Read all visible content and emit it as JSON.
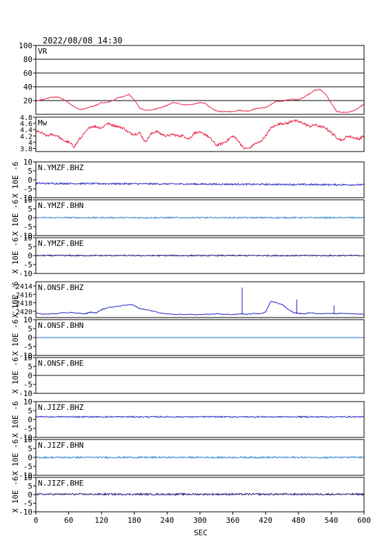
{
  "header": {
    "datetime": "2022/08/08 14:30"
  },
  "xaxis": {
    "label": "SEC",
    "min": 0,
    "max": 600,
    "ticks": [
      0,
      60,
      120,
      180,
      240,
      300,
      360,
      420,
      480,
      540,
      600
    ]
  },
  "chart_data": [
    {
      "type": "line",
      "label": "VR",
      "ylim": [
        0,
        100
      ],
      "yticks": [
        20,
        40,
        60,
        80,
        100
      ],
      "grid": true,
      "color": "#e8254a",
      "x": [
        0,
        10,
        20,
        30,
        40,
        50,
        60,
        70,
        80,
        90,
        100,
        110,
        120,
        130,
        140,
        150,
        160,
        170,
        180,
        190,
        200,
        210,
        220,
        230,
        240,
        250,
        260,
        270,
        280,
        290,
        300,
        310,
        320,
        330,
        340,
        350,
        360,
        370,
        380,
        390,
        400,
        410,
        420,
        430,
        440,
        450,
        460,
        470,
        480,
        490,
        500,
        510,
        520,
        530,
        540,
        550,
        560,
        570,
        580,
        590,
        600
      ],
      "values": [
        19,
        21,
        23,
        25,
        25,
        22,
        17,
        11,
        7,
        8,
        11,
        13,
        17,
        17,
        20,
        24,
        26,
        29,
        21,
        9,
        6,
        6,
        8,
        10,
        13,
        17,
        16,
        14,
        14,
        15,
        17,
        16,
        9,
        5,
        4,
        4,
        4,
        6,
        5,
        5,
        8,
        9,
        10,
        14,
        19,
        19,
        21,
        22,
        21,
        25,
        30,
        35,
        36,
        29,
        16,
        4,
        3,
        3,
        5,
        9,
        15
      ]
    },
    {
      "type": "line",
      "label": "Mw",
      "ylim": [
        3.7,
        4.8
      ],
      "yticks": [
        3.8,
        4.0,
        4.2,
        4.4,
        4.6,
        4.8
      ],
      "color": "#e8254a",
      "x": [
        0,
        10,
        20,
        30,
        40,
        50,
        60,
        70,
        80,
        90,
        100,
        110,
        120,
        130,
        140,
        150,
        160,
        170,
        180,
        190,
        200,
        210,
        220,
        230,
        240,
        250,
        260,
        270,
        280,
        290,
        300,
        310,
        320,
        330,
        340,
        350,
        360,
        370,
        380,
        390,
        400,
        410,
        420,
        430,
        440,
        450,
        460,
        470,
        480,
        490,
        500,
        510,
        520,
        530,
        540,
        550,
        560,
        570,
        580,
        590,
        600
      ],
      "values": [
        4.35,
        4.3,
        4.2,
        4.25,
        4.2,
        4.05,
        4.0,
        3.85,
        4.1,
        4.3,
        4.5,
        4.5,
        4.45,
        4.6,
        4.55,
        4.5,
        4.45,
        4.3,
        4.25,
        4.3,
        4.0,
        4.25,
        4.35,
        4.25,
        4.2,
        4.25,
        4.2,
        4.2,
        4.1,
        4.3,
        4.3,
        4.25,
        4.1,
        3.9,
        3.95,
        4.05,
        4.2,
        4.05,
        3.8,
        3.8,
        3.95,
        4.0,
        4.2,
        4.45,
        4.55,
        4.6,
        4.6,
        4.7,
        4.65,
        4.6,
        4.5,
        4.55,
        4.5,
        4.45,
        4.3,
        4.15,
        4.05,
        4.2,
        4.15,
        4.1,
        4.2
      ]
    },
    {
      "type": "line",
      "label": "N.YMZF.BHZ",
      "ylabel": "X 10E -6",
      "ylim": [
        -10,
        10
      ],
      "yticks": [
        -10,
        -5,
        0,
        5,
        10
      ],
      "color": "#2d2dc4",
      "baseline_start": -2,
      "baseline_end": -2.8,
      "noise": 0.45
    },
    {
      "type": "line",
      "label": "N.YMZF.BHN",
      "ylabel": "X 10E -6",
      "ylim": [
        -10,
        10
      ],
      "yticks": [
        -10,
        -5,
        0,
        5,
        10
      ],
      "color": "#3a8ad6",
      "baseline_start": 0,
      "baseline_end": 0,
      "noise": 0.4
    },
    {
      "type": "line",
      "label": "N.YMZF.BHE",
      "ylabel": "X 10E -6",
      "ylim": [
        -10,
        10
      ],
      "yticks": [
        -10,
        -5,
        0,
        5,
        10
      ],
      "color": "#1c1c7a",
      "baseline_start": 0,
      "baseline_end": 0,
      "noise": 0.35
    },
    {
      "type": "line",
      "label": "N.ONSF.BHZ",
      "ylabel": "X 10E -6",
      "ylim": [
        -2421.5,
        -2413
      ],
      "yticks": [
        -2420,
        -2418,
        -2416,
        -2414
      ],
      "color": "#2222cc",
      "x": [
        0,
        20,
        60,
        90,
        100,
        110,
        120,
        130,
        160,
        175,
        185,
        190,
        200,
        240,
        300,
        330,
        360,
        375,
        385,
        400,
        410,
        420,
        430,
        440,
        450,
        460,
        470,
        480,
        490,
        500,
        520,
        540,
        550,
        560,
        580,
        600
      ],
      "values": [
        -2420.5,
        -2420.7,
        -2420.3,
        -2420.6,
        -2420.2,
        -2420.4,
        -2419.6,
        -2419.2,
        -2418.6,
        -2418.4,
        -2419.0,
        -2419.4,
        -2419.6,
        -2420.7,
        -2420.8,
        -2420.6,
        -2420.8,
        -2420.6,
        -2420.7,
        -2420.5,
        -2420.6,
        -2420.2,
        -2417.6,
        -2418.0,
        -2418.4,
        -2419.4,
        -2420.3,
        -2420.5,
        -2420.6,
        -2420.4,
        -2420.6,
        -2420.5,
        -2420.6,
        -2420.5,
        -2420.6,
        -2420.7
      ],
      "spikes": [
        {
          "x": 377,
          "y": -2414.4
        },
        {
          "x": 477,
          "y": -2417.2
        },
        {
          "x": 545,
          "y": -2418.6
        }
      ]
    },
    {
      "type": "line",
      "label": "N.ONSF.BHN",
      "ylabel": "X 10E -6",
      "ylim": [
        -10,
        10
      ],
      "yticks": [
        -10,
        -5,
        0,
        5,
        10
      ],
      "color": "#1e6fcf",
      "baseline_start": 0,
      "baseline_end": 0,
      "noise": 0.0
    },
    {
      "type": "line",
      "label": "N.ONSF.BHE",
      "ylabel": "X 10E -6",
      "ylim": [
        -10,
        10
      ],
      "yticks": [
        -10,
        -5,
        0,
        5,
        10
      ],
      "color": "#111111",
      "baseline_start": 0,
      "baseline_end": 0,
      "noise": 0.0
    },
    {
      "type": "line",
      "label": "N.JIZF.BHZ",
      "ylabel": "X 10E -6",
      "ylim": [
        -10,
        10
      ],
      "yticks": [
        -10,
        -5,
        0,
        5,
        10
      ],
      "color": "#2d2dc4",
      "baseline_start": 1.5,
      "baseline_end": 1.5,
      "noise": 0.35
    },
    {
      "type": "line",
      "label": "N.JIZF.BHN",
      "ylabel": "X 10E -6",
      "ylim": [
        -10,
        10
      ],
      "yticks": [
        -10,
        -5,
        0,
        5,
        10
      ],
      "color": "#3a8ad6",
      "baseline_start": 0,
      "baseline_end": 0,
      "noise": 0.45
    },
    {
      "type": "line",
      "label": "N.JIZF.BHE",
      "ylabel": "X 10E -6",
      "ylim": [
        -10,
        10
      ],
      "yticks": [
        -10,
        -5,
        0,
        5,
        10
      ],
      "color": "#1c1c7a",
      "baseline_start": 0.2,
      "baseline_end": 0.2,
      "noise": 0.5
    }
  ]
}
